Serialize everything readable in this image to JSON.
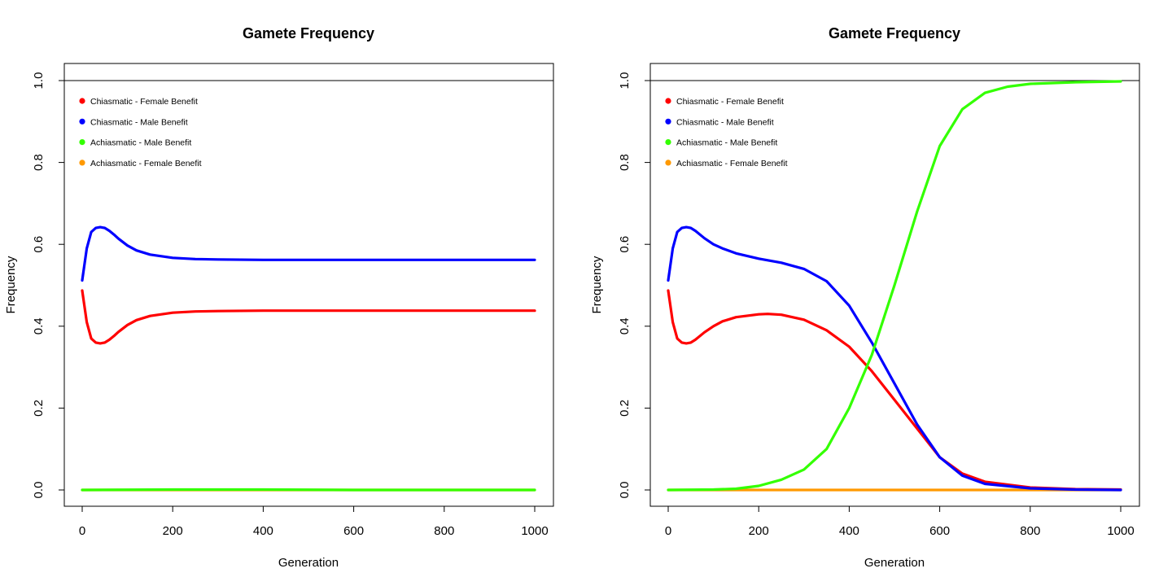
{
  "chart_data": [
    {
      "type": "line",
      "title": "Gamete Frequency",
      "xlabel": "Generation",
      "ylabel": "Frequency",
      "xlim": [
        0,
        1000
      ],
      "ylim": [
        0,
        1
      ],
      "x_ticks": [
        "0",
        "200",
        "400",
        "600",
        "800",
        "1000"
      ],
      "y_ticks": [
        "0.0",
        "0.2",
        "0.4",
        "0.6",
        "0.8",
        "1.0"
      ],
      "reference_line_y": 1.0,
      "grid": false,
      "legend_position": "top-left",
      "series": [
        {
          "name": "Chiasmatic - Female Benefit",
          "color": "#ff0000",
          "x": [
            0,
            10,
            20,
            30,
            40,
            50,
            60,
            70,
            80,
            100,
            120,
            150,
            200,
            250,
            300,
            400,
            500,
            600,
            700,
            800,
            900,
            1000
          ],
          "y": [
            0.487,
            0.41,
            0.37,
            0.36,
            0.358,
            0.36,
            0.367,
            0.376,
            0.386,
            0.403,
            0.415,
            0.425,
            0.433,
            0.436,
            0.437,
            0.438,
            0.438,
            0.438,
            0.438,
            0.438,
            0.438,
            0.438
          ]
        },
        {
          "name": "Chiasmatic - Male Benefit",
          "color": "#0000ff",
          "x": [
            0,
            10,
            20,
            30,
            40,
            50,
            60,
            70,
            80,
            100,
            120,
            150,
            200,
            250,
            300,
            400,
            500,
            600,
            700,
            800,
            900,
            1000
          ],
          "y": [
            0.512,
            0.59,
            0.63,
            0.64,
            0.642,
            0.64,
            0.633,
            0.624,
            0.614,
            0.597,
            0.585,
            0.575,
            0.567,
            0.564,
            0.563,
            0.562,
            0.562,
            0.562,
            0.562,
            0.562,
            0.562,
            0.562
          ]
        },
        {
          "name": "Achiasmatic - Male Benefit",
          "color": "#33ff00",
          "x": [
            0,
            200,
            400,
            600,
            800,
            1000
          ],
          "y": [
            0.0,
            0.001,
            0.001,
            0.0,
            0.0,
            0.0
          ]
        },
        {
          "name": "Achiasmatic - Female Benefit",
          "color": "#ff9900",
          "x": [
            0,
            200,
            400,
            600,
            800,
            1000
          ],
          "y": [
            0.0,
            0.0,
            0.0,
            0.0,
            0.0,
            0.0
          ]
        }
      ]
    },
    {
      "type": "line",
      "title": "Gamete Frequency",
      "xlabel": "Generation",
      "ylabel": "Frequency",
      "xlim": [
        0,
        1000
      ],
      "ylim": [
        0,
        1
      ],
      "x_ticks": [
        "0",
        "200",
        "400",
        "600",
        "800",
        "1000"
      ],
      "y_ticks": [
        "0.0",
        "0.2",
        "0.4",
        "0.6",
        "0.8",
        "1.0"
      ],
      "reference_line_y": 1.0,
      "grid": false,
      "legend_position": "top-left",
      "series": [
        {
          "name": "Chiasmatic - Female Benefit",
          "color": "#ff0000",
          "x": [
            0,
            10,
            20,
            30,
            40,
            50,
            60,
            80,
            100,
            120,
            150,
            200,
            220,
            250,
            300,
            350,
            400,
            450,
            500,
            550,
            600,
            650,
            700,
            800,
            900,
            1000
          ],
          "y": [
            0.487,
            0.41,
            0.37,
            0.36,
            0.358,
            0.36,
            0.367,
            0.385,
            0.4,
            0.412,
            0.422,
            0.429,
            0.43,
            0.428,
            0.416,
            0.39,
            0.35,
            0.29,
            0.22,
            0.15,
            0.08,
            0.04,
            0.02,
            0.006,
            0.002,
            0.001
          ]
        },
        {
          "name": "Chiasmatic - Male Benefit",
          "color": "#0000ff",
          "x": [
            0,
            10,
            20,
            30,
            40,
            50,
            60,
            80,
            100,
            120,
            150,
            200,
            250,
            300,
            350,
            400,
            450,
            500,
            550,
            600,
            650,
            700,
            800,
            900,
            1000
          ],
          "y": [
            0.512,
            0.59,
            0.63,
            0.64,
            0.642,
            0.64,
            0.633,
            0.615,
            0.6,
            0.59,
            0.578,
            0.565,
            0.555,
            0.54,
            0.51,
            0.45,
            0.36,
            0.26,
            0.16,
            0.08,
            0.035,
            0.015,
            0.004,
            0.001,
            0.0
          ]
        },
        {
          "name": "Achiasmatic - Male Benefit",
          "color": "#33ff00",
          "x": [
            0,
            100,
            150,
            200,
            250,
            300,
            350,
            400,
            450,
            500,
            550,
            600,
            650,
            700,
            750,
            800,
            900,
            1000
          ],
          "y": [
            0.0,
            0.001,
            0.003,
            0.01,
            0.025,
            0.05,
            0.1,
            0.2,
            0.33,
            0.5,
            0.68,
            0.84,
            0.93,
            0.97,
            0.985,
            0.992,
            0.996,
            0.998
          ]
        },
        {
          "name": "Achiasmatic - Female Benefit",
          "color": "#ff9900",
          "x": [
            0,
            200,
            400,
            600,
            800,
            1000
          ],
          "y": [
            0.0,
            0.0,
            0.0,
            0.0,
            0.0,
            0.0
          ]
        }
      ]
    }
  ]
}
